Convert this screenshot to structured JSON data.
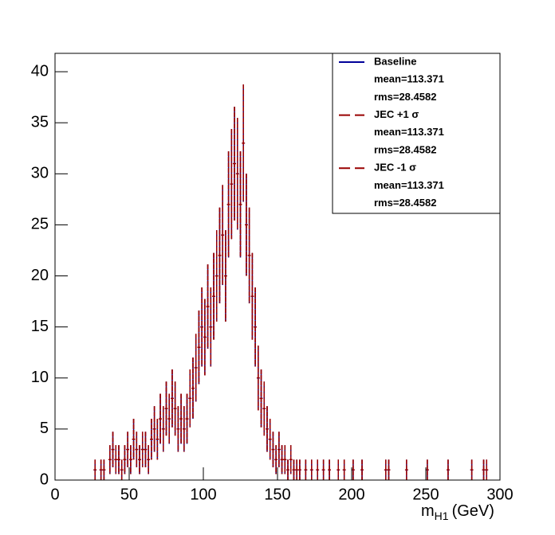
{
  "chart_data": {
    "type": "histogram",
    "x_label": "m",
    "x_label_sub": "H1",
    "x_label_unit": "(GeV)",
    "xlim": [
      0,
      300
    ],
    "xticks": [
      0,
      50,
      100,
      150,
      200,
      250,
      300
    ],
    "ylim": [
      0,
      41.8
    ],
    "yticks": [
      0,
      5,
      10,
      15,
      20,
      25,
      30,
      35,
      40
    ],
    "legend": "top-right",
    "legend_entries": [
      [
        "mean=113.371",
        "rms=28.4582"
      ],
      [
        "mean=113.371",
        "rms=28.4582"
      ],
      [
        "mean=113.371",
        "rms=28.4582"
      ]
    ],
    "bins": [
      0,
      2,
      4,
      6,
      8,
      10,
      12,
      14,
      16,
      18,
      20,
      22,
      24,
      26,
      28,
      30,
      32,
      34,
      36,
      38,
      40,
      42,
      44,
      46,
      48,
      50,
      52,
      54,
      56,
      58,
      60,
      62,
      64,
      66,
      68,
      70,
      72,
      74,
      76,
      78,
      80,
      82,
      84,
      86,
      88,
      90,
      92,
      94,
      96,
      98,
      100,
      102,
      104,
      106,
      108,
      110,
      112,
      114,
      116,
      118,
      120,
      122,
      124,
      126,
      128,
      130,
      132,
      134,
      136,
      138,
      140,
      142,
      144,
      146,
      148,
      150,
      152,
      154,
      156,
      158,
      160,
      162,
      164,
      166,
      168,
      170,
      172,
      174,
      176,
      178,
      180,
      182,
      184,
      186,
      188,
      190,
      192,
      194,
      196,
      198,
      200,
      202,
      204,
      206,
      208,
      210,
      212,
      214,
      216,
      218,
      220,
      222,
      224,
      226,
      228,
      230,
      232,
      234,
      236,
      238,
      240,
      242,
      244,
      246,
      248,
      250,
      252,
      254,
      256,
      258,
      260,
      262,
      264,
      266,
      268,
      270,
      272,
      274,
      276,
      278,
      280,
      282,
      284,
      286,
      288,
      290,
      292,
      294,
      296,
      298,
      300
    ],
    "series": [
      {
        "name": "Baseline",
        "color": "#000099",
        "dashed": false,
        "values": [
          0,
          0,
          0,
          0,
          0,
          0,
          0,
          0,
          0,
          0,
          0,
          0,
          0,
          1,
          0,
          1,
          1,
          0,
          2,
          3,
          2,
          2,
          1,
          2,
          3,
          2,
          4,
          3,
          2,
          3,
          3,
          2,
          4,
          5,
          4,
          6,
          5,
          7,
          6,
          8,
          7,
          5,
          6,
          5,
          6,
          8,
          9,
          11,
          13,
          15,
          14,
          17,
          15,
          18,
          20,
          22,
          24,
          20,
          27,
          29,
          31,
          30,
          27,
          33,
          25,
          22,
          18,
          15,
          10,
          8,
          7,
          5,
          4,
          3,
          2,
          3,
          2,
          2,
          1,
          2,
          1,
          1,
          1,
          0,
          1,
          0,
          1,
          0,
          1,
          0,
          1,
          0,
          1,
          0,
          0,
          1,
          0,
          1,
          0,
          0,
          1,
          0,
          0,
          1,
          0,
          0,
          0,
          0,
          0,
          0,
          0,
          1,
          1,
          0,
          0,
          0,
          0,
          0,
          1,
          0,
          0,
          0,
          0,
          0,
          0,
          1,
          0,
          0,
          0,
          0,
          0,
          0,
          1,
          0,
          0,
          0,
          0,
          0,
          0,
          0,
          1,
          0,
          0,
          0,
          1,
          1,
          0,
          0,
          0,
          0
        ]
      },
      {
        "name": "JEC +1 σ",
        "color": "#990000",
        "dashed": true,
        "values": [
          0,
          0,
          0,
          0,
          0,
          0,
          0,
          0,
          0,
          0,
          0,
          0,
          0,
          1,
          0,
          1,
          1,
          0,
          2,
          3,
          2,
          2,
          1,
          2,
          3,
          2,
          4,
          3,
          2,
          3,
          3,
          2,
          4,
          5,
          4,
          6,
          5,
          7,
          6,
          8,
          7,
          5,
          6,
          5,
          6,
          8,
          9,
          11,
          13,
          15,
          14,
          17,
          15,
          18,
          20,
          22,
          24,
          20,
          27,
          29,
          31,
          30,
          27,
          33,
          25,
          22,
          18,
          15,
          10,
          8,
          7,
          5,
          4,
          3,
          2,
          3,
          2,
          2,
          1,
          2,
          1,
          1,
          1,
          0,
          1,
          0,
          1,
          0,
          1,
          0,
          1,
          0,
          1,
          0,
          0,
          1,
          0,
          1,
          0,
          0,
          1,
          0,
          0,
          1,
          0,
          0,
          0,
          0,
          0,
          0,
          0,
          1,
          1,
          0,
          0,
          0,
          0,
          0,
          1,
          0,
          0,
          0,
          0,
          0,
          0,
          1,
          0,
          0,
          0,
          0,
          0,
          0,
          1,
          0,
          0,
          0,
          0,
          0,
          0,
          0,
          1,
          0,
          0,
          0,
          1,
          1,
          0,
          0,
          0,
          0
        ]
      },
      {
        "name": "JEC -1 σ",
        "color": "#990000",
        "dashed": true,
        "values": [
          0,
          0,
          0,
          0,
          0,
          0,
          0,
          0,
          0,
          0,
          0,
          0,
          0,
          1,
          0,
          1,
          1,
          0,
          2,
          3,
          2,
          2,
          1,
          2,
          3,
          2,
          4,
          3,
          2,
          3,
          3,
          2,
          4,
          5,
          4,
          6,
          5,
          7,
          6,
          8,
          7,
          5,
          6,
          5,
          6,
          8,
          9,
          11,
          13,
          15,
          14,
          17,
          15,
          18,
          20,
          22,
          24,
          20,
          27,
          29,
          31,
          30,
          27,
          33,
          25,
          22,
          18,
          15,
          10,
          8,
          7,
          5,
          4,
          3,
          2,
          3,
          2,
          2,
          1,
          2,
          1,
          1,
          1,
          0,
          1,
          0,
          1,
          0,
          1,
          0,
          1,
          0,
          1,
          0,
          0,
          1,
          0,
          1,
          0,
          0,
          1,
          0,
          0,
          1,
          0,
          0,
          0,
          0,
          0,
          0,
          0,
          1,
          1,
          0,
          0,
          0,
          0,
          0,
          1,
          0,
          0,
          0,
          0,
          0,
          0,
          1,
          0,
          0,
          0,
          0,
          0,
          0,
          1,
          0,
          0,
          0,
          0,
          0,
          0,
          0,
          1,
          0,
          0,
          0,
          1,
          1,
          0,
          0,
          0,
          0
        ]
      }
    ]
  }
}
